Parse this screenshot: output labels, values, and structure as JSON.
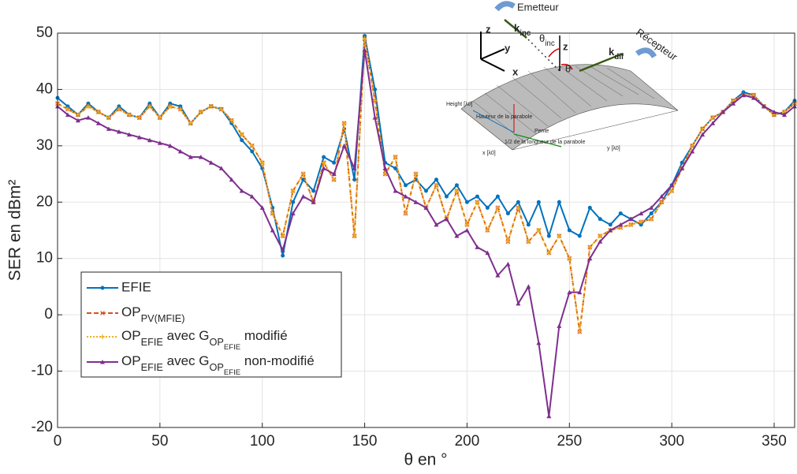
{
  "chart_data": {
    "type": "line",
    "xlabel": "θ en °",
    "ylabel": "SER en dBm²",
    "x": [
      0,
      5,
      10,
      15,
      20,
      25,
      30,
      35,
      40,
      45,
      50,
      55,
      60,
      65,
      70,
      75,
      80,
      85,
      90,
      95,
      100,
      105,
      110,
      115,
      120,
      125,
      130,
      135,
      140,
      145,
      150,
      155,
      160,
      165,
      170,
      175,
      180,
      185,
      190,
      195,
      200,
      205,
      210,
      215,
      220,
      225,
      230,
      235,
      240,
      245,
      250,
      255,
      260,
      265,
      270,
      275,
      280,
      285,
      290,
      295,
      300,
      305,
      310,
      315,
      320,
      325,
      330,
      335,
      340,
      345,
      350,
      355,
      360
    ],
    "xlim": [
      0,
      360
    ],
    "xticks": [
      0,
      50,
      100,
      150,
      200,
      250,
      300,
      350
    ],
    "ylim": [
      -20,
      50
    ],
    "yticks": [
      -20,
      -10,
      0,
      10,
      20,
      30,
      40,
      50
    ],
    "grid": true,
    "legend": "lower left",
    "series": [
      {
        "name": "EFIE",
        "color": "#0072bd",
        "marker": "dot",
        "dash": "solid",
        "values": [
          38.5,
          37,
          35.5,
          37.5,
          36,
          35,
          37,
          35.5,
          35,
          37.5,
          35,
          37.5,
          37,
          34,
          36,
          37,
          36.5,
          34,
          31,
          29,
          26,
          19,
          10.5,
          20,
          24,
          22,
          28,
          27,
          33,
          24,
          49.5,
          40,
          27,
          26,
          23,
          24,
          22,
          24,
          21,
          23,
          20,
          21,
          19,
          21,
          18,
          20,
          16,
          20,
          14,
          20,
          15,
          14,
          19,
          17,
          16,
          18,
          17,
          16,
          18,
          20,
          23,
          27,
          30,
          33,
          35,
          36,
          38,
          39.5,
          39,
          37,
          35.5,
          36,
          38
        ]
      },
      {
        "name": "OP_{PV(MFIE)}",
        "color": "#d95319",
        "marker": "x",
        "dash": "dash",
        "values": [
          37.5,
          36.5,
          35.5,
          37,
          36,
          35,
          36.5,
          35.5,
          35,
          37,
          35,
          37,
          36.5,
          34,
          36,
          37,
          36.5,
          34.5,
          32,
          30,
          27,
          18,
          14,
          22,
          25,
          20,
          27,
          24,
          34,
          14,
          49,
          38,
          25,
          28,
          18,
          25,
          19,
          23,
          17,
          22,
          16,
          20,
          15,
          19,
          13,
          19,
          13,
          15,
          11,
          14,
          10,
          -3,
          12,
          14,
          15,
          15.5,
          16,
          16.5,
          17,
          20,
          22,
          26,
          30,
          33,
          35,
          36,
          38,
          39,
          39,
          37,
          35.5,
          36,
          37.5
        ]
      },
      {
        "name": "OP_{EFIE} avec G_{OP_{EFIE}} modifié",
        "color": "#edb120",
        "marker": "plus",
        "dash": "dot",
        "values": [
          37.5,
          36.5,
          35.5,
          37,
          36,
          35,
          36.5,
          35.5,
          35,
          37,
          35,
          37,
          36.5,
          34,
          36,
          37,
          36.5,
          34.5,
          32,
          30,
          27,
          18,
          14,
          22,
          25,
          20,
          27,
          24,
          34,
          14,
          49,
          38,
          25,
          28,
          18,
          25,
          19,
          23,
          17,
          22,
          16,
          20,
          15,
          19,
          13,
          19,
          13,
          15,
          11,
          14,
          10,
          -3,
          12,
          14,
          15,
          15.5,
          16,
          16.5,
          17,
          20,
          22,
          26,
          30,
          33,
          35,
          36,
          38,
          39,
          39,
          37,
          35.5,
          36,
          37.5
        ]
      },
      {
        "name": "OP_{EFIE} avec G_{OP_{EFIE}} non-modifié",
        "color": "#7e2f8e",
        "marker": "triangle",
        "dash": "solid",
        "values": [
          37,
          35.5,
          34.5,
          35,
          34,
          33,
          32.5,
          32,
          31.5,
          31,
          30.5,
          30,
          29,
          28,
          28,
          27,
          26,
          24,
          22,
          21,
          19,
          15,
          11.5,
          18,
          21,
          20,
          26,
          25,
          30,
          26,
          47,
          35,
          26,
          22,
          21,
          20,
          19,
          16,
          17,
          14,
          15,
          12,
          11,
          7,
          9,
          2,
          5,
          -5,
          -18,
          -2,
          4,
          4,
          10,
          13,
          15,
          16,
          17,
          18,
          19,
          21,
          23,
          26,
          29,
          32,
          34,
          36,
          37.5,
          39,
          38.5,
          37,
          36,
          35.5,
          37
        ]
      }
    ]
  },
  "inset": {
    "emetteur": "Emetteur",
    "recepteur": "Récepteur",
    "k_inc": "k_{inc}",
    "k_dif": "k_{dif}",
    "theta_inc": "θ_{inc}",
    "theta": "θ",
    "z1": "z",
    "y": "y",
    "x": "x",
    "z2": "z",
    "hauteur": "Hauteur de la parabole",
    "pente": "Pente",
    "longueur": "1/2 de la longueur de la parabole",
    "xaxis": "x [λ0]",
    "yaxis": "y [λ0]",
    "height": "Height [λ0]"
  }
}
